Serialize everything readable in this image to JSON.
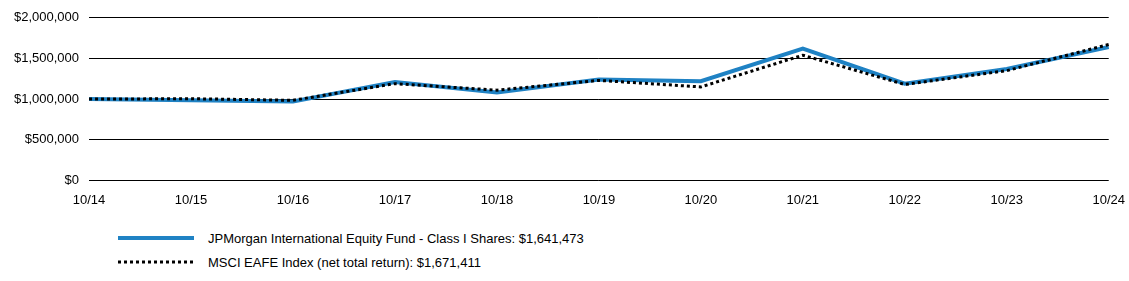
{
  "chart_data": {
    "type": "line",
    "categories": [
      "10/14",
      "10/15",
      "10/16",
      "10/17",
      "10/18",
      "10/19",
      "10/20",
      "10/21",
      "10/22",
      "10/23",
      "10/24"
    ],
    "series": [
      {
        "name": "JPMorgan International Equity Fund - Class I Shares: $1,641,473",
        "color": "#1f82c4",
        "line_style": "solid",
        "values": [
          1000000,
          985000,
          970000,
          1210000,
          1080000,
          1240000,
          1220000,
          1620000,
          1190000,
          1370000,
          1641473
        ]
      },
      {
        "name": "MSCI EAFE Index (net total return): $1,671,411",
        "color": "#000000",
        "line_style": "dotted",
        "values": [
          1000000,
          1005000,
          985000,
          1190000,
          1110000,
          1230000,
          1150000,
          1540000,
          1180000,
          1350000,
          1671411
        ]
      }
    ],
    "ylim": [
      0,
      2000000
    ],
    "yticks": [
      {
        "value": 0,
        "label": "$0"
      },
      {
        "value": 500000,
        "label": "$500,000"
      },
      {
        "value": 1000000,
        "label": "$1,000,000"
      },
      {
        "value": 1500000,
        "label": "$1,500,000"
      },
      {
        "value": 2000000,
        "label": "$2,000,000"
      }
    ],
    "grid": true,
    "legend": "bottom"
  }
}
